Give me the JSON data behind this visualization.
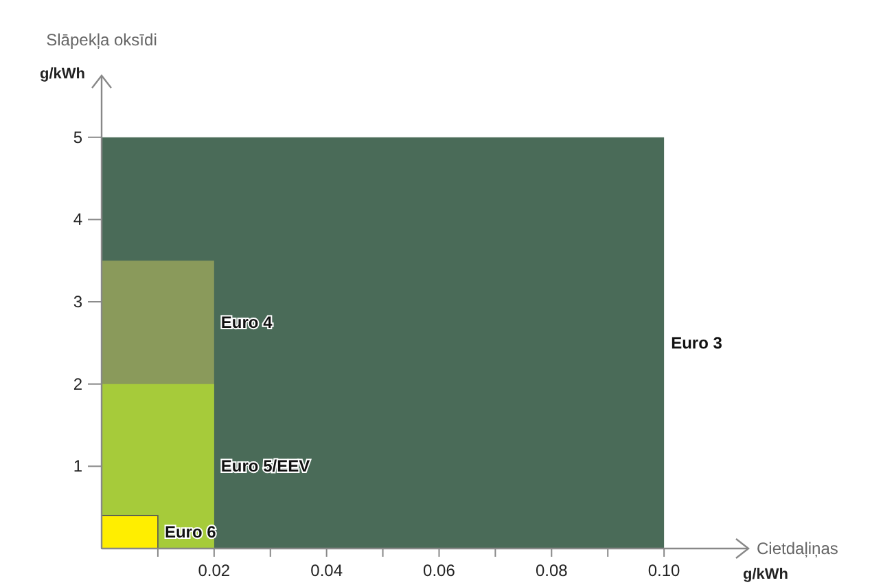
{
  "chart_data": {
    "type": "area",
    "ylabel": "Slāpekļa oksīdi",
    "xlabel": "Cietdaļiņas",
    "annotations": [
      "g/kWh",
      "g/kWh"
    ],
    "xlim": [
      0,
      0.115
    ],
    "ylim": [
      0,
      5.75
    ],
    "xticks": [
      {
        "value": 0.01,
        "label": null
      },
      "0.02",
      {
        "value": 0.03,
        "label": null
      },
      0.04,
      {
        "value": 0.05,
        "label": null
      },
      0.06,
      {
        "value": 0.07,
        "label": null
      },
      0.08,
      {
        "value": 0.09,
        "label": null
      },
      {
        "value": 0.1,
        "label": "0.10"
      }
    ],
    "yticks": [
      1,
      2,
      3,
      4,
      5
    ],
    "series": [
      {
        "name": "Euro 3",
        "color": "#4a6b58",
        "x": [
          0,
          0.1
        ],
        "values": [
          5,
          5
        ]
      },
      {
        "name": "Euro 4",
        "color": "#8a9a5b",
        "x": [
          0,
          0.02
        ],
        "values": [
          3.5,
          3.5
        ]
      },
      {
        "name": "Euro 5/EEV",
        "color": "#a6cb3a",
        "x": [
          0,
          0.02
        ],
        "values": [
          2,
          2
        ]
      },
      {
        "name": "Euro 6",
        "color": "#ffee00",
        "x": [
          0,
          0.01
        ],
        "values": [
          0.4,
          0.4
        ]
      }
    ]
  }
}
